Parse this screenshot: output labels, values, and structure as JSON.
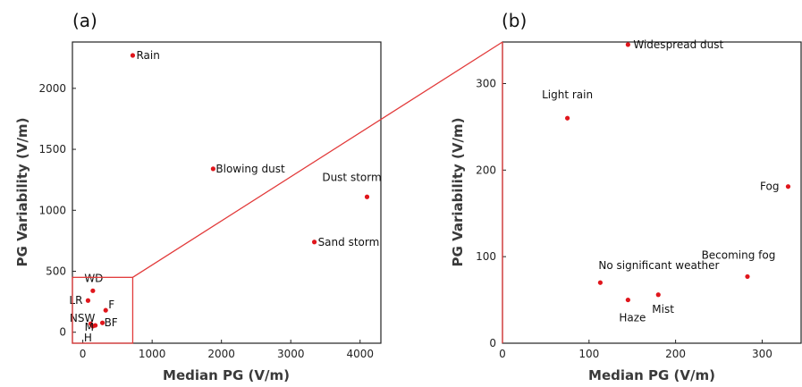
{
  "chart_data": [
    {
      "panel": "(a)",
      "type": "scatter",
      "xlabel": "Median PG (V/m)",
      "ylabel": "PG Variability (V/m)",
      "xlim": [
        -150,
        4300
      ],
      "ylim": [
        -90,
        2380
      ],
      "xticks": [
        0,
        1000,
        2000,
        3000,
        4000
      ],
      "yticks": [
        0,
        500,
        1000,
        1500,
        2000
      ],
      "points": [
        {
          "label": "Rain",
          "x": 720,
          "y": 2270
        },
        {
          "label": "Blowing dust",
          "x": 1880,
          "y": 1340
        },
        {
          "label": "Dust storm",
          "x": 4100,
          "y": 1110
        },
        {
          "label": "Sand storm",
          "x": 3340,
          "y": 740
        },
        {
          "label": "WD",
          "x": 145,
          "y": 340
        },
        {
          "label": "LR",
          "x": 75,
          "y": 260
        },
        {
          "label": "F",
          "x": 330,
          "y": 180
        },
        {
          "label": "BF",
          "x": 283,
          "y": 77
        },
        {
          "label": "NSW",
          "x": 113,
          "y": 70
        },
        {
          "label": "H",
          "x": 145,
          "y": 50
        },
        {
          "label": "M",
          "x": 180,
          "y": 56
        }
      ],
      "zoom_box": {
        "x": [
          -150,
          720
        ],
        "y": [
          -90,
          450
        ]
      }
    },
    {
      "panel": "(b)",
      "type": "scatter",
      "xlabel": "Median PG (V/m)",
      "ylabel": "PG Variability (V/m)",
      "xlim": [
        0,
        345
      ],
      "ylim": [
        0,
        348
      ],
      "xticks": [
        0,
        100,
        200,
        300
      ],
      "yticks": [
        0,
        100,
        200,
        300
      ],
      "points": [
        {
          "label": "Widespread dust",
          "x": 145,
          "y": 345
        },
        {
          "label": "Light rain",
          "x": 75,
          "y": 260
        },
        {
          "label": "Fog",
          "x": 330,
          "y": 181
        },
        {
          "label": "No significant weather",
          "x": 113,
          "y": 70
        },
        {
          "label": "Becoming fog",
          "x": 283,
          "y": 77
        },
        {
          "label": "Haze",
          "x": 145,
          "y": 50
        },
        {
          "label": "Mist",
          "x": 180,
          "y": 56
        }
      ]
    }
  ]
}
